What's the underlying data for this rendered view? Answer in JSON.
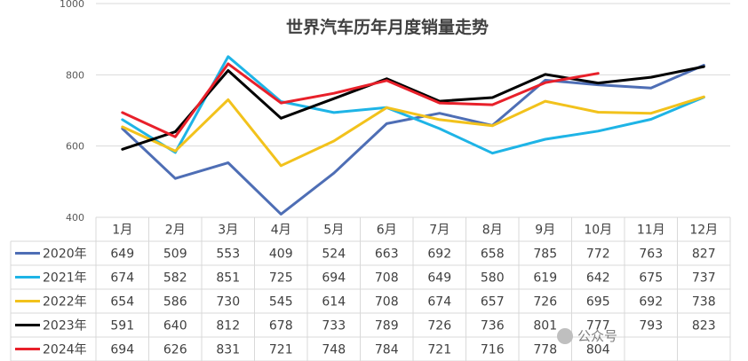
{
  "chart_data": {
    "type": "line",
    "title": "世界汽车历年月度销量走势",
    "xlabel": "",
    "ylabel": "",
    "ylim": [
      400,
      1000
    ],
    "yticks": [
      "400",
      "600",
      "800",
      "1000"
    ],
    "grid": true,
    "legend": "data-table-bottom",
    "categories": [
      "1月",
      "2月",
      "3月",
      "4月",
      "5月",
      "6月",
      "7月",
      "8月",
      "9月",
      "10月",
      "11月",
      "12月"
    ],
    "series": [
      {
        "name": "2020年",
        "color": "#4e6eb5",
        "values": [
          649,
          509,
          553,
          409,
          524,
          663,
          692,
          658,
          785,
          772,
          763,
          827
        ],
        "labels": [
          "649",
          "509",
          "553",
          "409",
          "524",
          "663",
          "692",
          "658",
          "785",
          "772",
          "763",
          "827"
        ]
      },
      {
        "name": "2021年",
        "color": "#1eb4e6",
        "values": [
          674,
          582,
          851,
          725,
          694,
          708,
          649,
          580,
          619,
          642,
          675,
          737
        ],
        "labels": [
          "674",
          "582",
          "851",
          "725",
          "694",
          "708",
          "649",
          "580",
          "619",
          "642",
          "675",
          "737"
        ]
      },
      {
        "name": "2022年",
        "color": "#f2c21c",
        "values": [
          654,
          586,
          730,
          545,
          614,
          708,
          674,
          657,
          726,
          695,
          692,
          738
        ],
        "labels": [
          "654",
          "586",
          "730",
          "545",
          "614",
          "708",
          "674",
          "657",
          "726",
          "695",
          "692",
          "738"
        ]
      },
      {
        "name": "2023年",
        "color": "#000000",
        "values": [
          591,
          640,
          812,
          678,
          733,
          789,
          726,
          736,
          801,
          777,
          793,
          823
        ],
        "labels": [
          "591",
          "640",
          "812",
          "678",
          "733",
          "789",
          "726",
          "736",
          "801",
          "777",
          "793",
          "823"
        ]
      },
      {
        "name": "2024年",
        "color": "#e8202a",
        "values": [
          694,
          626,
          831,
          721,
          748,
          784,
          721,
          716,
          778,
          804,
          null,
          null
        ],
        "labels": [
          "694",
          "626",
          "831",
          "721",
          "748",
          "784",
          "721",
          "716",
          "778",
          "804",
          "",
          ""
        ]
      }
    ]
  },
  "watermark": {
    "text": "公众号"
  }
}
